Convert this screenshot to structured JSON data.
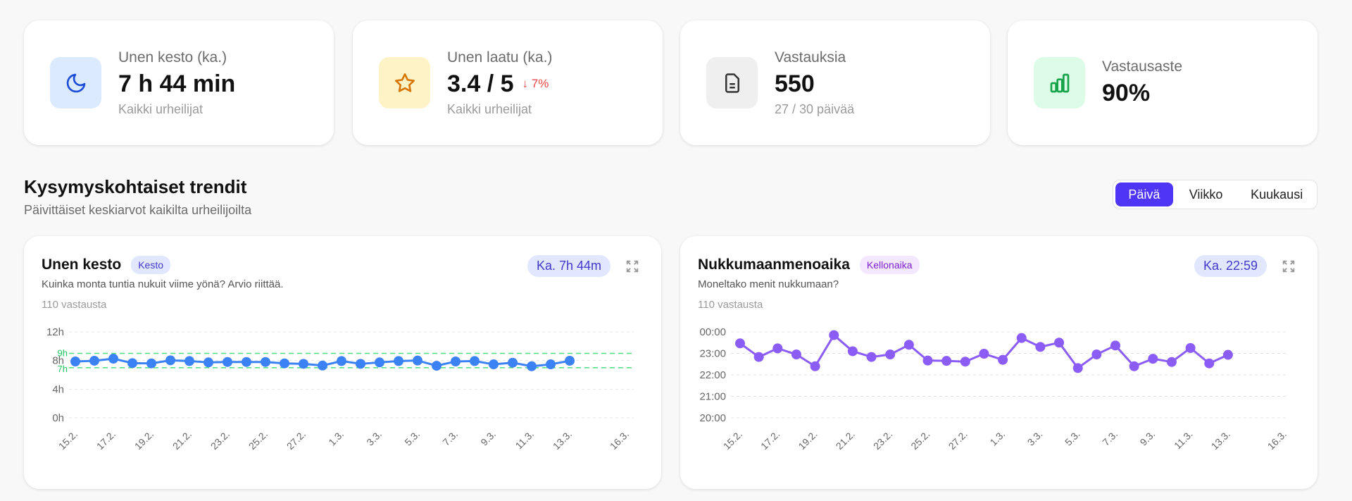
{
  "stats": [
    {
      "label": "Unen kesto (ka.)",
      "value": "7 h 44 min",
      "sub": "Kaikki urheilijat",
      "icon": "moon-icon",
      "icon_bg": "#dbeafe",
      "icon_color": "#1d4ed8"
    },
    {
      "label": "Unen laatu (ka.)",
      "value": "3.4 / 5",
      "delta": "↓ 7%",
      "sub": "Kaikki urheilijat",
      "icon": "star-icon",
      "icon_bg": "#fef3c7",
      "icon_color": "#d97706"
    },
    {
      "label": "Vastauksia",
      "value": "550",
      "sub": "27 / 30 päivää",
      "icon": "document-icon",
      "icon_bg": "#efefef",
      "icon_color": "#333333"
    },
    {
      "label": "Vastausaste",
      "value": "90%",
      "icon": "bar-chart-icon",
      "icon_bg": "#dcfce7",
      "icon_color": "#16a34a"
    }
  ],
  "section": {
    "title": "Kysymyskohtaiset trendit",
    "subtitle": "Päivittäiset keskiarvot kaikilta urheilijoilta"
  },
  "toggle": {
    "options": [
      "Päivä",
      "Viikko",
      "Kuukausi"
    ],
    "active": "Päivä",
    "accent": "#4f35f5"
  },
  "chart_data": [
    {
      "type": "line",
      "title": "Unen kesto",
      "tag": "Kesto",
      "question": "Kuinka monta tuntia nukuit viime yönä? Arvio riittää.",
      "responses": "110 vastausta",
      "average": "Ka. 7h 44m",
      "color": "#3b82f6",
      "ylim": [
        0,
        12
      ],
      "yticks": [
        0,
        4,
        8,
        12
      ],
      "ytick_labels": [
        "0h",
        "4h",
        "8h",
        "12h"
      ],
      "reference_band": {
        "low": 7,
        "high": 9,
        "labels": [
          "7h",
          "9h"
        ],
        "color": "#4ade80"
      },
      "x_ticks": [
        "15.2.",
        "17.2.",
        "19.2.",
        "21.2.",
        "23.2.",
        "25.2.",
        "27.2.",
        "1.3.",
        "3.3.",
        "5.3.",
        "7.3.",
        "9.3.",
        "11.3.",
        "13.3.",
        "16.3."
      ],
      "x": [
        "15.2.",
        "16.2.",
        "17.2.",
        "18.2.",
        "19.2.",
        "20.2.",
        "21.2.",
        "22.2.",
        "23.2.",
        "24.2.",
        "25.2.",
        "26.2.",
        "27.2.",
        "28.2.",
        "1.3.",
        "2.3.",
        "3.3.",
        "4.3.",
        "5.3.",
        "6.3.",
        "7.3.",
        "8.3.",
        "9.3.",
        "10.3.",
        "11.3.",
        "12.3.",
        "13.3."
      ],
      "values": [
        7.87,
        7.97,
        8.26,
        7.64,
        7.6,
        8.03,
        7.93,
        7.74,
        7.8,
        7.8,
        7.8,
        7.6,
        7.54,
        7.3,
        7.93,
        7.54,
        7.74,
        7.93,
        8.0,
        7.27,
        7.87,
        7.93,
        7.47,
        7.7,
        7.2,
        7.47,
        7.97
      ]
    },
    {
      "type": "line",
      "title": "Nukkumaanmenoaika",
      "tag": "Kellonaika",
      "question": "Moneltako menit nukkumaan?",
      "responses": "110 vastausta",
      "average": "Ka. 22:59",
      "color": "#8b5cf6",
      "ylim": [
        "20:00",
        "00:00"
      ],
      "ytick_labels": [
        "20:00",
        "21:00",
        "22:00",
        "23:00",
        "00:00"
      ],
      "x_ticks": [
        "15.2.",
        "17.2.",
        "19.2.",
        "21.2.",
        "23.2.",
        "25.2.",
        "27.2.",
        "1.3.",
        "3.3.",
        "5.3.",
        "7.3.",
        "9.3.",
        "11.3.",
        "13.3.",
        "16.3."
      ],
      "x": [
        "15.2.",
        "16.2.",
        "17.2.",
        "18.2.",
        "19.2.",
        "20.2.",
        "21.2.",
        "22.2.",
        "23.2.",
        "24.2.",
        "25.2.",
        "26.2.",
        "27.2.",
        "28.2.",
        "1.3.",
        "2.3.",
        "3.3.",
        "4.3.",
        "5.3.",
        "6.3.",
        "7.3.",
        "8.3.",
        "9.3.",
        "10.3.",
        "11.3.",
        "12.3.",
        "13.3."
      ],
      "values": [
        "23:28",
        "22:50",
        "23:14",
        "22:57",
        "22:24",
        "23:51",
        "23:06",
        "22:50",
        "22:57",
        "23:24",
        "22:40",
        "22:39",
        "22:37",
        "22:59",
        "22:42",
        "23:43",
        "23:18",
        "23:30",
        "22:19",
        "22:57",
        "23:22",
        "22:24",
        "22:45",
        "22:36",
        "23:15",
        "22:32",
        "22:56"
      ]
    }
  ]
}
